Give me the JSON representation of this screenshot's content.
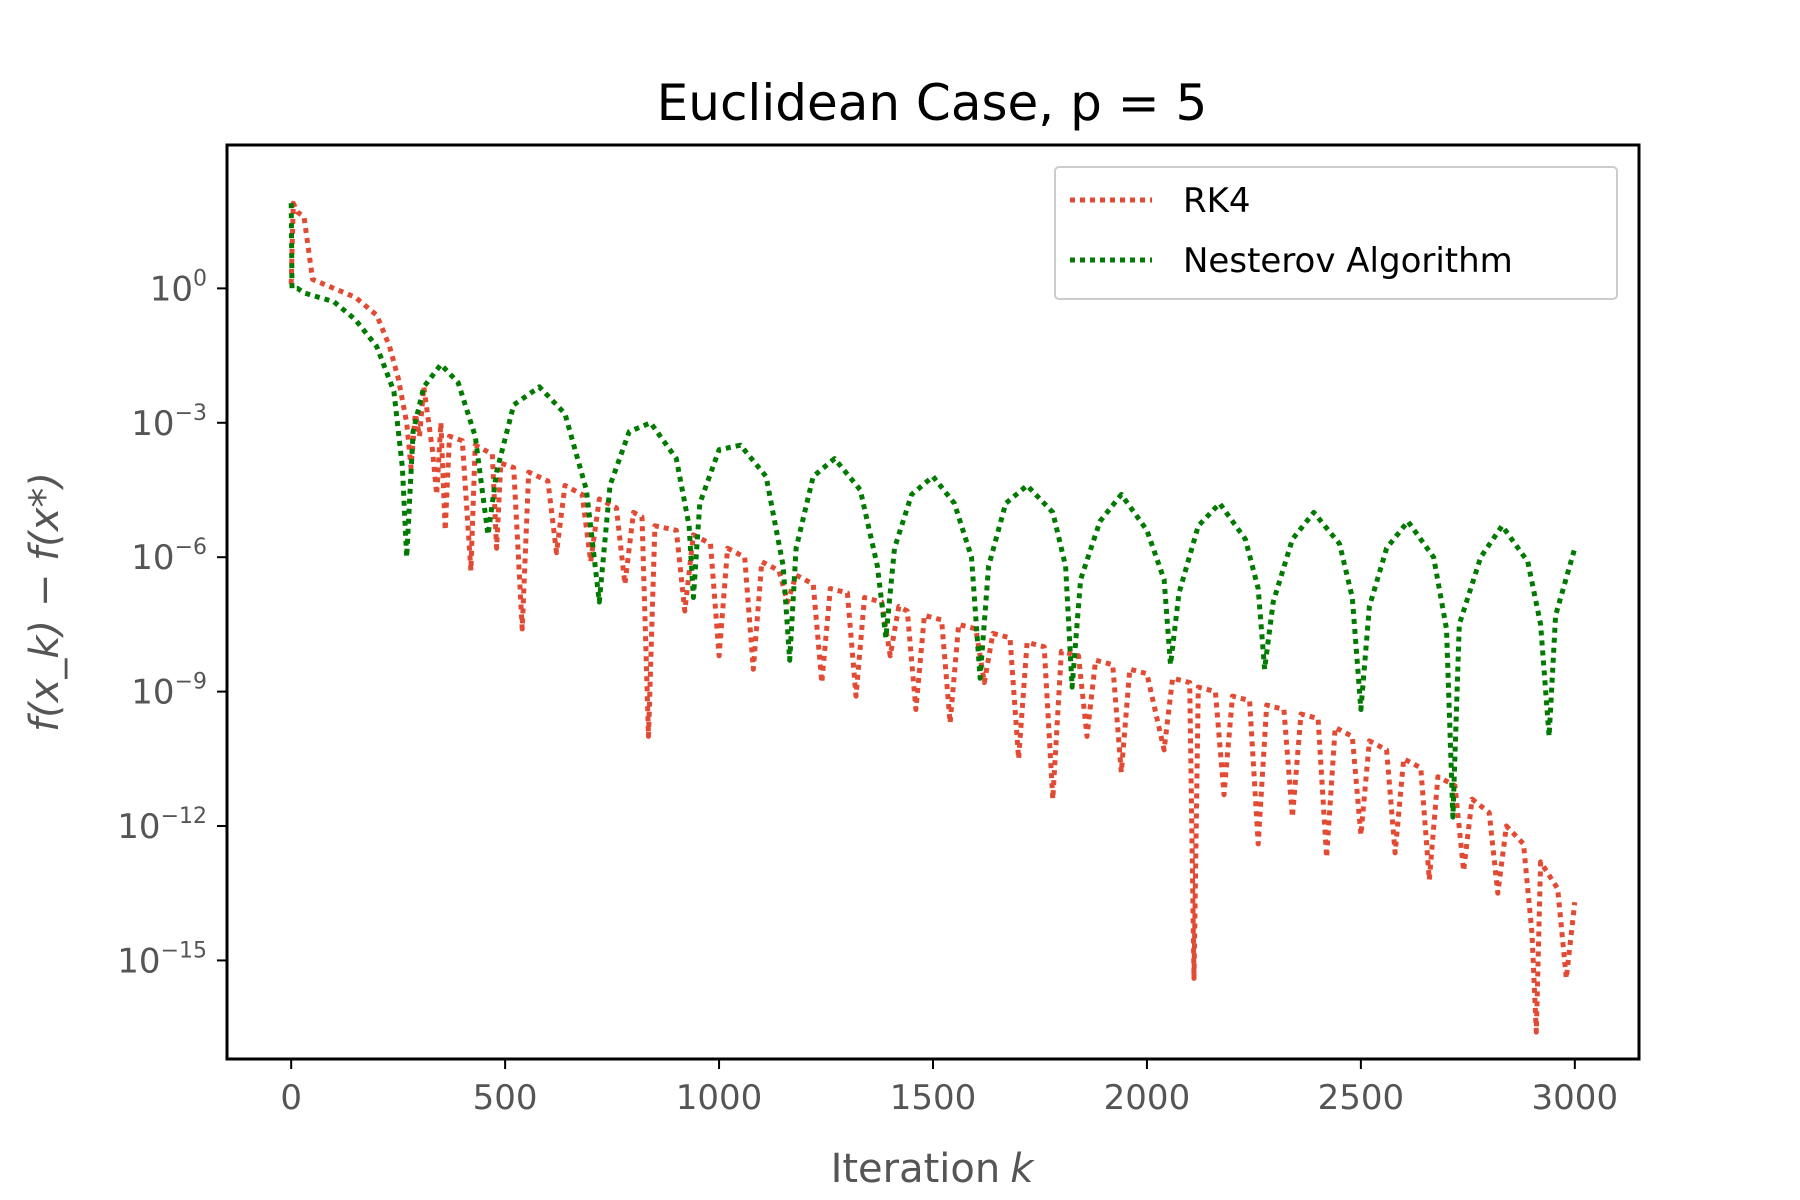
{
  "chart_data": {
    "type": "line",
    "title": "Euclidean Case, p = 5",
    "xlabel": "Iteration",
    "xlabel_var": "k",
    "ylabel": "f(x_k) − f(x*)",
    "yscale": "log",
    "xlim": [
      -150,
      3150
    ],
    "ylim_log10": [
      -17.2,
      3.2
    ],
    "x_ticks": [
      0,
      500,
      1000,
      1500,
      2000,
      2500,
      3000
    ],
    "x_tick_labels": [
      "0",
      "500",
      "1000",
      "1500",
      "2000",
      "2500",
      "3000"
    ],
    "y_ticks_exp": [
      0,
      -3,
      -6,
      -9,
      -12,
      -15
    ],
    "y_tick_base": "10",
    "y_tick_exponents": [
      "0",
      "−3",
      "−6",
      "−9",
      "−12",
      "−15"
    ],
    "grid": false,
    "legend_position": "top-right",
    "series": [
      {
        "name": "RK4",
        "color": "#e24a33",
        "line_style": "dotted",
        "points": [
          [
            0,
            0.1
          ],
          [
            5,
            1.9
          ],
          [
            15,
            1.7
          ],
          [
            30,
            1.6
          ],
          [
            50,
            0.2
          ],
          [
            100,
            0.0
          ],
          [
            150,
            -0.2
          ],
          [
            200,
            -0.6
          ],
          [
            230,
            -1.3
          ],
          [
            250,
            -2.0
          ],
          [
            270,
            -3.0
          ],
          [
            280,
            -4.0
          ],
          [
            290,
            -2.8
          ],
          [
            300,
            -3.3
          ],
          [
            310,
            -2.2
          ],
          [
            330,
            -3.6
          ],
          [
            340,
            -4.6
          ],
          [
            350,
            -3.0
          ],
          [
            360,
            -5.4
          ],
          [
            370,
            -3.3
          ],
          [
            400,
            -3.4
          ],
          [
            420,
            -6.3
          ],
          [
            430,
            -3.5
          ],
          [
            470,
            -3.7
          ],
          [
            480,
            -5.8
          ],
          [
            490,
            -3.9
          ],
          [
            520,
            -4.0
          ],
          [
            540,
            -7.6
          ],
          [
            555,
            -4.1
          ],
          [
            600,
            -4.3
          ],
          [
            620,
            -5.9
          ],
          [
            640,
            -4.4
          ],
          [
            680,
            -4.6
          ],
          [
            700,
            -6.1
          ],
          [
            720,
            -4.7
          ],
          [
            760,
            -4.9
          ],
          [
            780,
            -6.6
          ],
          [
            800,
            -5.0
          ],
          [
            820,
            -5.1
          ],
          [
            835,
            -10.0
          ],
          [
            850,
            -5.3
          ],
          [
            900,
            -5.4
          ],
          [
            920,
            -7.2
          ],
          [
            940,
            -5.5
          ],
          [
            980,
            -5.7
          ],
          [
            1000,
            -8.2
          ],
          [
            1020,
            -5.8
          ],
          [
            1060,
            -6.0
          ],
          [
            1080,
            -8.5
          ],
          [
            1100,
            -6.1
          ],
          [
            1140,
            -6.3
          ],
          [
            1160,
            -7.0
          ],
          [
            1180,
            -6.4
          ],
          [
            1220,
            -6.6
          ],
          [
            1240,
            -8.8
          ],
          [
            1260,
            -6.7
          ],
          [
            1300,
            -6.8
          ],
          [
            1320,
            -9.1
          ],
          [
            1340,
            -6.9
          ],
          [
            1380,
            -7.0
          ],
          [
            1400,
            -8.2
          ],
          [
            1420,
            -7.1
          ],
          [
            1440,
            -7.2
          ],
          [
            1460,
            -9.4
          ],
          [
            1480,
            -7.3
          ],
          [
            1520,
            -7.4
          ],
          [
            1540,
            -9.7
          ],
          [
            1560,
            -7.5
          ],
          [
            1600,
            -7.6
          ],
          [
            1620,
            -8.8
          ],
          [
            1640,
            -7.7
          ],
          [
            1680,
            -7.8
          ],
          [
            1700,
            -10.5
          ],
          [
            1720,
            -7.9
          ],
          [
            1760,
            -8.0
          ],
          [
            1780,
            -11.4
          ],
          [
            1800,
            -8.1
          ],
          [
            1840,
            -8.2
          ],
          [
            1860,
            -10.0
          ],
          [
            1880,
            -8.3
          ],
          [
            1920,
            -8.4
          ],
          [
            1940,
            -10.8
          ],
          [
            1960,
            -8.5
          ],
          [
            2000,
            -8.6
          ],
          [
            2040,
            -10.3
          ],
          [
            2060,
            -8.7
          ],
          [
            2100,
            -8.8
          ],
          [
            2110,
            -15.4
          ],
          [
            2120,
            -8.9
          ],
          [
            2160,
            -9.0
          ],
          [
            2180,
            -11.3
          ],
          [
            2200,
            -9.1
          ],
          [
            2240,
            -9.2
          ],
          [
            2260,
            -12.4
          ],
          [
            2280,
            -9.3
          ],
          [
            2320,
            -9.4
          ],
          [
            2340,
            -11.8
          ],
          [
            2360,
            -9.5
          ],
          [
            2400,
            -9.6
          ],
          [
            2420,
            -12.7
          ],
          [
            2440,
            -9.8
          ],
          [
            2480,
            -10.0
          ],
          [
            2500,
            -12.2
          ],
          [
            2520,
            -10.1
          ],
          [
            2560,
            -10.3
          ],
          [
            2580,
            -12.6
          ],
          [
            2600,
            -10.5
          ],
          [
            2640,
            -10.7
          ],
          [
            2660,
            -13.2
          ],
          [
            2680,
            -10.9
          ],
          [
            2720,
            -11.1
          ],
          [
            2740,
            -13.0
          ],
          [
            2760,
            -11.4
          ],
          [
            2800,
            -11.7
          ],
          [
            2820,
            -13.5
          ],
          [
            2840,
            -12.0
          ],
          [
            2880,
            -12.4
          ],
          [
            2900,
            -14.4
          ],
          [
            2910,
            -16.6
          ],
          [
            2920,
            -12.8
          ],
          [
            2960,
            -13.4
          ],
          [
            2980,
            -15.4
          ],
          [
            3000,
            -13.7
          ]
        ]
      },
      {
        "name": "Nesterov Algorithm",
        "color": "#007a00",
        "line_style": "dotted",
        "points": [
          [
            0,
            1.9
          ],
          [
            2,
            0.0
          ],
          [
            15,
            0.0
          ],
          [
            30,
            -0.1
          ],
          [
            100,
            -0.3
          ],
          [
            150,
            -0.7
          ],
          [
            200,
            -1.3
          ],
          [
            240,
            -2.3
          ],
          [
            260,
            -4.0
          ],
          [
            270,
            -6.0
          ],
          [
            285,
            -3.2
          ],
          [
            310,
            -2.2
          ],
          [
            350,
            -1.7
          ],
          [
            390,
            -2.1
          ],
          [
            430,
            -3.3
          ],
          [
            460,
            -5.5
          ],
          [
            480,
            -4.1
          ],
          [
            520,
            -2.6
          ],
          [
            580,
            -2.2
          ],
          [
            640,
            -2.8
          ],
          [
            690,
            -4.5
          ],
          [
            720,
            -7.0
          ],
          [
            745,
            -4.4
          ],
          [
            790,
            -3.2
          ],
          [
            840,
            -3.0
          ],
          [
            900,
            -3.8
          ],
          [
            930,
            -5.3
          ],
          [
            940,
            -6.9
          ],
          [
            955,
            -4.8
          ],
          [
            1000,
            -3.6
          ],
          [
            1050,
            -3.5
          ],
          [
            1110,
            -4.2
          ],
          [
            1150,
            -6.2
          ],
          [
            1165,
            -8.3
          ],
          [
            1180,
            -5.8
          ],
          [
            1220,
            -4.2
          ],
          [
            1270,
            -3.8
          ],
          [
            1330,
            -4.5
          ],
          [
            1370,
            -6.2
          ],
          [
            1390,
            -7.8
          ],
          [
            1410,
            -5.8
          ],
          [
            1450,
            -4.6
          ],
          [
            1500,
            -4.2
          ],
          [
            1550,
            -4.8
          ],
          [
            1590,
            -6.0
          ],
          [
            1610,
            -8.7
          ],
          [
            1630,
            -6.2
          ],
          [
            1670,
            -4.8
          ],
          [
            1720,
            -4.4
          ],
          [
            1780,
            -5.0
          ],
          [
            1810,
            -6.2
          ],
          [
            1825,
            -8.9
          ],
          [
            1845,
            -6.5
          ],
          [
            1890,
            -5.2
          ],
          [
            1940,
            -4.6
          ],
          [
            2000,
            -5.4
          ],
          [
            2040,
            -6.5
          ],
          [
            2055,
            -8.4
          ],
          [
            2075,
            -6.8
          ],
          [
            2120,
            -5.3
          ],
          [
            2170,
            -4.8
          ],
          [
            2230,
            -5.6
          ],
          [
            2260,
            -6.7
          ],
          [
            2275,
            -8.5
          ],
          [
            2295,
            -7.0
          ],
          [
            2340,
            -5.6
          ],
          [
            2390,
            -5.0
          ],
          [
            2450,
            -5.7
          ],
          [
            2480,
            -6.9
          ],
          [
            2500,
            -9.4
          ],
          [
            2520,
            -7.1
          ],
          [
            2560,
            -5.8
          ],
          [
            2610,
            -5.2
          ],
          [
            2670,
            -6.0
          ],
          [
            2700,
            -7.6
          ],
          [
            2715,
            -11.8
          ],
          [
            2730,
            -7.5
          ],
          [
            2780,
            -6.0
          ],
          [
            2830,
            -5.3
          ],
          [
            2890,
            -6.1
          ],
          [
            2920,
            -7.5
          ],
          [
            2940,
            -10.0
          ],
          [
            2955,
            -7.3
          ],
          [
            3000,
            -5.8
          ]
        ]
      }
    ]
  }
}
